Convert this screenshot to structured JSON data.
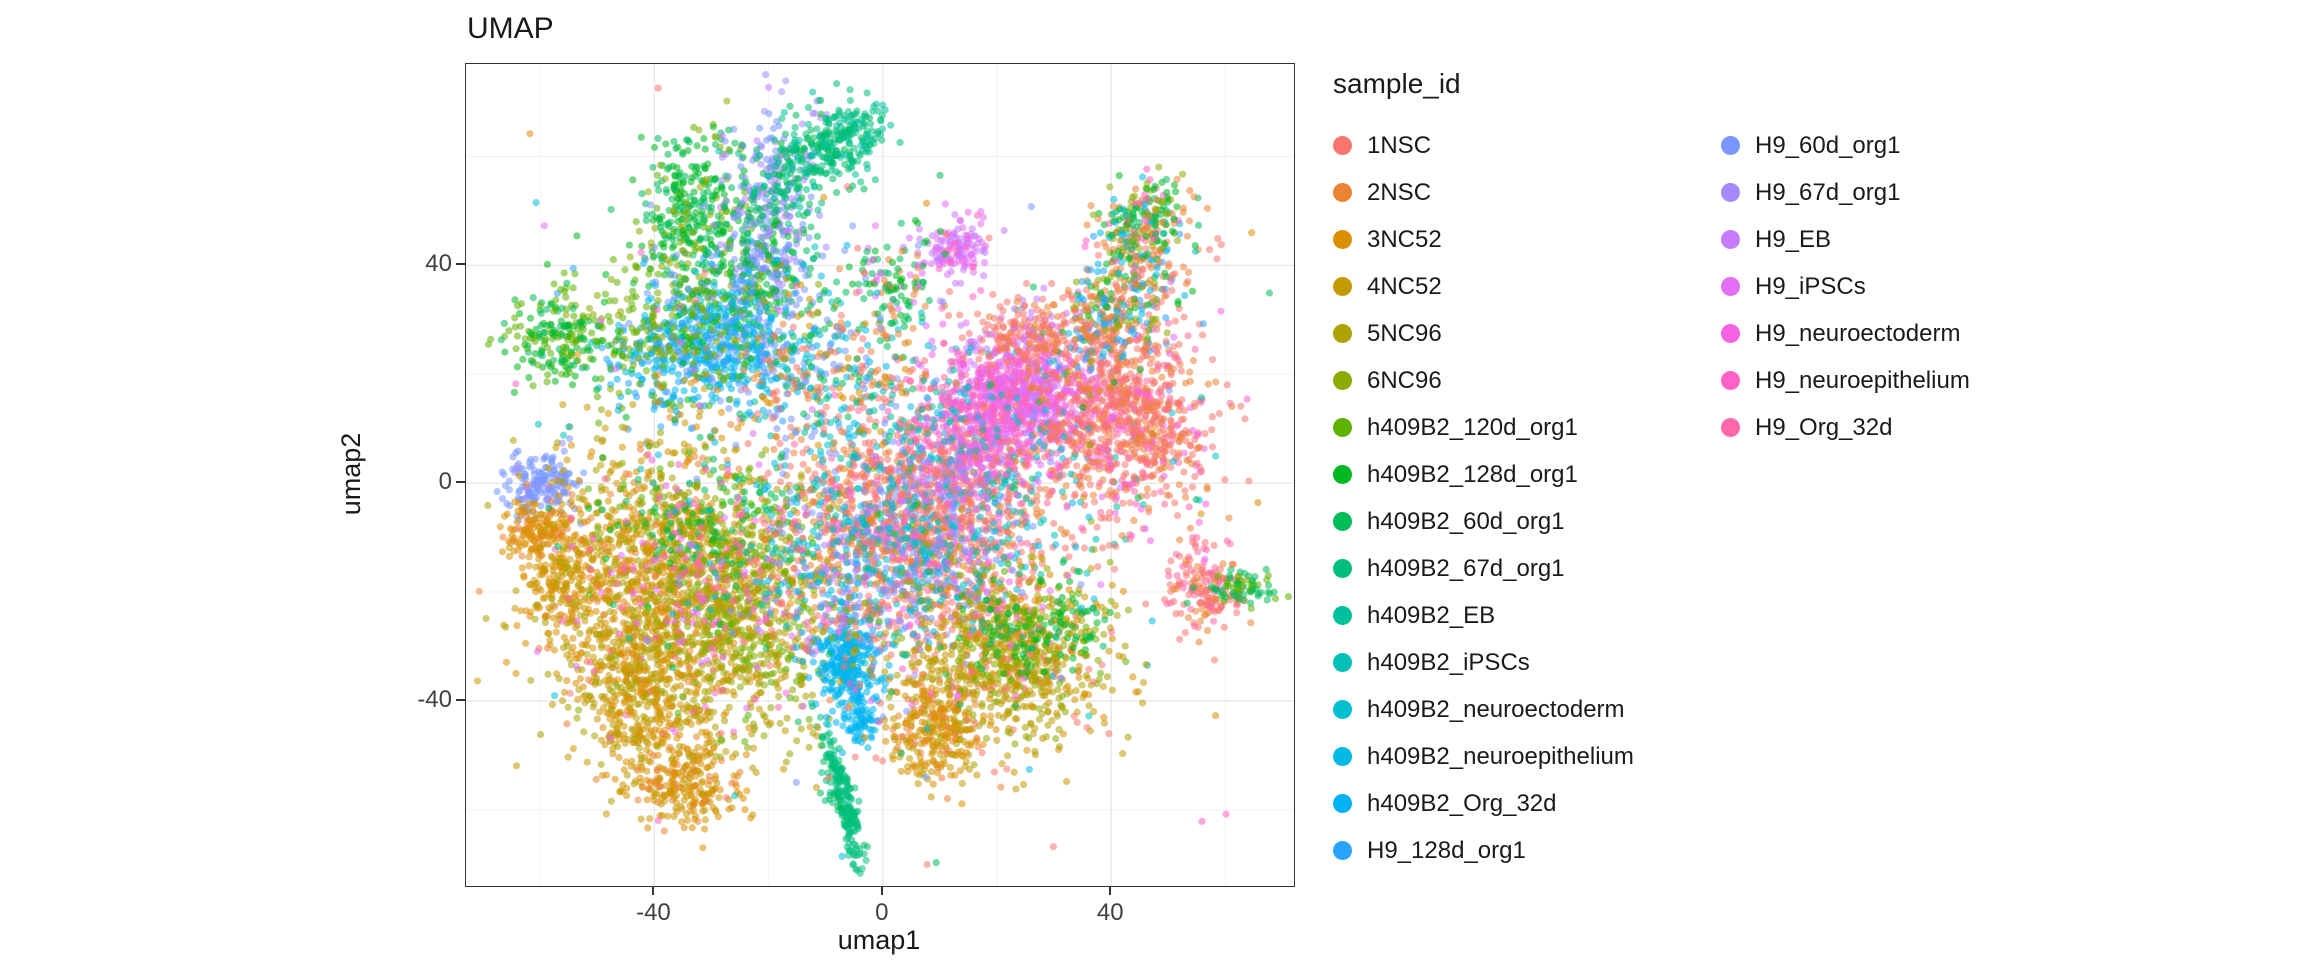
{
  "title": "UMAP",
  "style": {
    "panel_bg": "#FFFFFF",
    "panel_border": "#333333",
    "grid_major": "#E8E8E8",
    "grid_minor": "#F2F2F2",
    "tick_color": "#333333",
    "point_alpha": 0.55,
    "point_radius": 3.6
  },
  "chart_data": {
    "type": "scatter",
    "title": "UMAP",
    "xlabel": "umap1",
    "ylabel": "umap2",
    "xlim": [
      -73,
      72
    ],
    "ylim": [
      -74,
      77
    ],
    "xticks": [
      -40,
      0,
      40
    ],
    "yticks": [
      -40,
      0,
      40
    ],
    "xticks_minor": [
      -60,
      -20,
      20,
      60
    ],
    "yticks_minor": [
      -60,
      -20,
      20,
      60
    ],
    "grid": true,
    "legend_title": "sample_id",
    "legend_position": "right",
    "legend_columns": [
      16,
      7
    ],
    "samples": [
      {
        "label": "1NSC",
        "color": "#F8766D"
      },
      {
        "label": "2NSC",
        "color": "#EB8335"
      },
      {
        "label": "3NC52",
        "color": "#DA8F00"
      },
      {
        "label": "4NC52",
        "color": "#C59900"
      },
      {
        "label": "5NC96",
        "color": "#ACA300"
      },
      {
        "label": "6NC96",
        "color": "#8CAB00"
      },
      {
        "label": "h409B2_120d_org1",
        "color": "#5EB300"
      },
      {
        "label": "h409B2_128d_org1",
        "color": "#00B81F"
      },
      {
        "label": "h409B2_60d_org1",
        "color": "#00BC59"
      },
      {
        "label": "h409B2_67d_org1",
        "color": "#00BF7D"
      },
      {
        "label": "h409B2_EB",
        "color": "#00C19C"
      },
      {
        "label": "h409B2_iPSCs",
        "color": "#00C1B8"
      },
      {
        "label": "h409B2_neuroectoderm",
        "color": "#00BFD0"
      },
      {
        "label": "h409B2_neuroepithelium",
        "color": "#00BAE3"
      },
      {
        "label": "h409B2_Org_32d",
        "color": "#00B2F3"
      },
      {
        "label": "H9_128d_org1",
        "color": "#29A3FF"
      },
      {
        "label": "H9_60d_org1",
        "color": "#7997FF"
      },
      {
        "label": "H9_67d_org1",
        "color": "#A58AFF"
      },
      {
        "label": "H9_EB",
        "color": "#C77CFF"
      },
      {
        "label": "H9_iPSCs",
        "color": "#E26EF7"
      },
      {
        "label": "H9_neuroectoderm",
        "color": "#F563E3"
      },
      {
        "label": "H9_neuroepithelium",
        "color": "#FF61C7"
      },
      {
        "label": "H9_Org_32d",
        "color": "#FF68A8"
      }
    ],
    "clusters": [
      {
        "x": -33,
        "y": 50,
        "sx": 5,
        "sy": 7,
        "n": 320,
        "mix": [
          [
            7,
            3
          ],
          [
            8,
            3
          ],
          [
            6,
            1
          ],
          [
            5,
            1
          ]
        ]
      },
      {
        "x": -20,
        "y": 47,
        "sx": 4.5,
        "sy": 11,
        "n": 420,
        "c": 0.3,
        "mix": [
          [
            16,
            3
          ],
          [
            17,
            3
          ],
          [
            8,
            2
          ],
          [
            7,
            1
          ],
          [
            18,
            1
          ]
        ]
      },
      {
        "x": -12,
        "y": 60,
        "sx": 5,
        "sy": 5,
        "n": 240,
        "c": 0.5,
        "mix": [
          [
            9,
            2
          ],
          [
            8,
            2
          ],
          [
            10,
            1
          ]
        ]
      },
      {
        "x": -5,
        "y": 64,
        "sx": 3,
        "sy": 3,
        "n": 90,
        "mix": [
          [
            9,
            2
          ],
          [
            10,
            1
          ]
        ]
      },
      {
        "x": -24,
        "y": 35,
        "sx": 8,
        "sy": 6,
        "n": 280,
        "mix": [
          [
            8,
            2
          ],
          [
            7,
            1
          ],
          [
            16,
            2
          ],
          [
            5,
            1
          ],
          [
            13,
            1
          ]
        ]
      },
      {
        "x": -31,
        "y": 24,
        "sx": 8,
        "sy": 5.5,
        "n": 520,
        "mix": [
          [
            13,
            3
          ],
          [
            14,
            2
          ],
          [
            15,
            2
          ],
          [
            16,
            1
          ]
        ]
      },
      {
        "x": -38,
        "y": 29,
        "sx": 9,
        "sy": 7,
        "n": 240,
        "mix": [
          [
            5,
            2
          ],
          [
            6,
            2
          ],
          [
            7,
            1
          ]
        ]
      },
      {
        "x": -57,
        "y": 27,
        "sx": 4.5,
        "sy": 4,
        "n": 190,
        "mix": [
          [
            6,
            3
          ],
          [
            7,
            2
          ],
          [
            8,
            1
          ]
        ]
      },
      {
        "x": -60,
        "y": 0,
        "sx": 3.5,
        "sy": 3,
        "n": 170,
        "mix": [
          [
            16,
            6
          ],
          [
            17,
            1
          ]
        ]
      },
      {
        "x": -60,
        "y": -9,
        "sx": 3.5,
        "sy": 3,
        "n": 150,
        "mix": [
          [
            2,
            3
          ],
          [
            1,
            1
          ]
        ]
      },
      {
        "x": -56,
        "y": -19,
        "sx": 4,
        "sy": 4.5,
        "n": 170,
        "mix": [
          [
            2,
            3
          ],
          [
            3,
            2
          ]
        ]
      },
      {
        "x": -38,
        "y": -18,
        "sx": 11,
        "sy": 13,
        "n": 1350,
        "mix": [
          [
            2,
            3
          ],
          [
            3,
            3
          ],
          [
            4,
            2
          ],
          [
            1,
            1
          ]
        ]
      },
      {
        "x": -24,
        "y": -27,
        "sx": 8,
        "sy": 10,
        "n": 520,
        "mix": [
          [
            4,
            2
          ],
          [
            5,
            2
          ],
          [
            3,
            1
          ],
          [
            6,
            1
          ]
        ]
      },
      {
        "x": -30,
        "y": -7,
        "sx": 9,
        "sy": 6,
        "n": 240,
        "mix": [
          [
            8,
            1
          ],
          [
            7,
            1
          ],
          [
            6,
            1
          ],
          [
            5,
            1
          ]
        ]
      },
      {
        "x": -35,
        "y": -22,
        "sx": 10,
        "sy": 11,
        "n": 130,
        "mix": [
          [
            21,
            1
          ],
          [
            20,
            1
          ],
          [
            22,
            1
          ],
          [
            19,
            1
          ]
        ]
      },
      {
        "x": -35,
        "y": -55,
        "sx": 5,
        "sy": 4.5,
        "n": 260,
        "mix": [
          [
            2,
            3
          ],
          [
            3,
            2
          ],
          [
            1,
            1
          ]
        ]
      },
      {
        "x": -43,
        "y": -39,
        "sx": 6,
        "sy": 7,
        "n": 320,
        "mix": [
          [
            3,
            2
          ],
          [
            2,
            2
          ],
          [
            4,
            1
          ]
        ]
      },
      {
        "x": -7,
        "y": -58,
        "sx": 1.8,
        "sy": 6,
        "n": 210,
        "c": -0.8,
        "mix": [
          [
            9,
            5
          ],
          [
            8,
            1
          ]
        ]
      },
      {
        "x": -6,
        "y": -33,
        "sx": 2.8,
        "sy": 4.2,
        "n": 300,
        "mix": [
          [
            14,
            6
          ],
          [
            13,
            1
          ]
        ]
      },
      {
        "x": -4,
        "y": -44,
        "sx": 2,
        "sy": 2.5,
        "n": 70,
        "mix": [
          [
            14,
            4
          ],
          [
            13,
            1
          ]
        ]
      },
      {
        "x": 5,
        "y": -7,
        "sx": 12,
        "sy": 11,
        "n": 1500,
        "mix": [
          [
            0,
            5
          ],
          [
            1,
            2
          ],
          [
            22,
            1
          ],
          [
            16,
            1
          ],
          [
            12,
            1
          ]
        ]
      },
      {
        "x": 1,
        "y": -16,
        "sx": 11,
        "sy": 8,
        "n": 450,
        "mix": [
          [
            16,
            2
          ],
          [
            17,
            1
          ],
          [
            13,
            1
          ],
          [
            11,
            1
          ],
          [
            20,
            1
          ],
          [
            5,
            1
          ]
        ]
      },
      {
        "x": 24,
        "y": 16,
        "sx": 6.5,
        "sy": 5.5,
        "n": 850,
        "mix": [
          [
            19,
            3
          ],
          [
            18,
            2
          ],
          [
            20,
            2
          ],
          [
            21,
            1
          ],
          [
            22,
            1
          ]
        ]
      },
      {
        "x": 17,
        "y": 9,
        "sx": 6,
        "sy": 6,
        "n": 300,
        "mix": [
          [
            21,
            2
          ],
          [
            22,
            2
          ],
          [
            20,
            1
          ],
          [
            19,
            1
          ]
        ]
      },
      {
        "x": 8,
        "y": 2,
        "sx": 17,
        "sy": 12,
        "n": 280,
        "mix": [
          [
            12,
            1
          ],
          [
            13,
            1
          ],
          [
            11,
            1
          ],
          [
            10,
            1
          ]
        ]
      },
      {
        "x": 43,
        "y": 12,
        "sx": 7.5,
        "sy": 8.5,
        "n": 850,
        "mix": [
          [
            0,
            5
          ],
          [
            1,
            2
          ],
          [
            22,
            1
          ],
          [
            20,
            1
          ]
        ]
      },
      {
        "x": 42,
        "y": 33,
        "sx": 6,
        "sy": 8,
        "n": 420,
        "c": 0.55,
        "mix": [
          [
            0,
            2
          ],
          [
            1,
            2
          ],
          [
            5,
            1
          ],
          [
            7,
            1
          ],
          [
            15,
            1
          ],
          [
            13,
            1
          ]
        ]
      },
      {
        "x": 46,
        "y": 47,
        "sx": 4,
        "sy": 4.5,
        "n": 220,
        "mix": [
          [
            7,
            2
          ],
          [
            5,
            2
          ],
          [
            1,
            2
          ],
          [
            13,
            1
          ],
          [
            21,
            1
          ],
          [
            8,
            1
          ]
        ]
      },
      {
        "x": 13,
        "y": 43,
        "sx": 2.8,
        "sy": 2.8,
        "n": 130,
        "mix": [
          [
            18,
            2
          ],
          [
            19,
            2
          ],
          [
            21,
            1
          ]
        ]
      },
      {
        "x": 2,
        "y": 37,
        "sx": 4,
        "sy": 5,
        "n": 120,
        "mix": [
          [
            8,
            2
          ],
          [
            7,
            1
          ],
          [
            1,
            1
          ],
          [
            19,
            1
          ]
        ]
      },
      {
        "x": 22,
        "y": -33,
        "sx": 9,
        "sy": 8,
        "n": 800,
        "mix": [
          [
            3,
            3
          ],
          [
            4,
            2
          ],
          [
            2,
            1
          ],
          [
            5,
            1
          ],
          [
            0,
            1
          ]
        ]
      },
      {
        "x": 27,
        "y": -27,
        "sx": 7,
        "sy": 5,
        "n": 180,
        "mix": [
          [
            8,
            1
          ],
          [
            7,
            1
          ],
          [
            6,
            1
          ]
        ]
      },
      {
        "x": 9,
        "y": -46,
        "sx": 4,
        "sy": 5,
        "n": 260,
        "mix": [
          [
            2,
            2
          ],
          [
            3,
            2
          ],
          [
            1,
            1
          ]
        ]
      },
      {
        "x": 57,
        "y": -19,
        "sx": 3.5,
        "sy": 4,
        "n": 170,
        "mix": [
          [
            0,
            3
          ],
          [
            22,
            2
          ],
          [
            1,
            1
          ]
        ]
      },
      {
        "x": 63,
        "y": -19,
        "sx": 3,
        "sy": 1.4,
        "n": 70,
        "mix": [
          [
            8,
            2
          ],
          [
            6,
            1
          ]
        ]
      },
      {
        "x": 0,
        "y": -5,
        "sx": 28,
        "sy": 26,
        "n": 420,
        "mix": [
          [
            0,
            1
          ],
          [
            16,
            1
          ],
          [
            13,
            1
          ],
          [
            8,
            1
          ],
          [
            2,
            1
          ],
          [
            19,
            1
          ],
          [
            21,
            1
          ],
          [
            11,
            1
          ]
        ]
      },
      {
        "x": -9,
        "y": 20,
        "sx": 8,
        "sy": 6,
        "n": 260,
        "mix": [
          [
            1,
            1
          ],
          [
            13,
            1
          ],
          [
            16,
            1
          ],
          [
            8,
            1
          ],
          [
            0,
            1
          ],
          [
            2,
            1
          ]
        ]
      },
      {
        "x": 26,
        "y": 27,
        "sx": 5,
        "sy": 4,
        "n": 200,
        "mix": [
          [
            0,
            3
          ],
          [
            1,
            1
          ],
          [
            18,
            1
          ]
        ]
      },
      {
        "x": 12,
        "y": 0,
        "sx": 5,
        "sy": 5,
        "n": 180,
        "mix": [
          [
            18,
            1
          ],
          [
            19,
            1
          ],
          [
            16,
            1
          ],
          [
            0,
            2
          ]
        ]
      }
    ]
  }
}
